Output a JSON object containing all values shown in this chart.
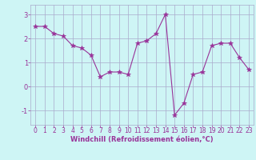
{
  "x": [
    0,
    1,
    2,
    3,
    4,
    5,
    6,
    7,
    8,
    9,
    10,
    11,
    12,
    13,
    14,
    15,
    16,
    17,
    18,
    19,
    20,
    21,
    22,
    23
  ],
  "y": [
    2.5,
    2.5,
    2.2,
    2.1,
    1.7,
    1.6,
    1.3,
    0.4,
    0.6,
    0.6,
    0.5,
    1.8,
    1.9,
    2.2,
    3.0,
    -1.2,
    -0.7,
    0.5,
    0.6,
    1.7,
    1.8,
    1.8,
    1.2,
    0.7
  ],
  "line_color": "#993399",
  "marker": "*",
  "marker_color": "#993399",
  "xlabel": "Windchill (Refroidissement éolien,°C)",
  "ylim": [
    -1.6,
    3.4
  ],
  "xlim": [
    -0.5,
    23.5
  ],
  "yticks": [
    -1,
    0,
    1,
    2,
    3
  ],
  "xticks": [
    0,
    1,
    2,
    3,
    4,
    5,
    6,
    7,
    8,
    9,
    10,
    11,
    12,
    13,
    14,
    15,
    16,
    17,
    18,
    19,
    20,
    21,
    22,
    23
  ],
  "bg_color": "#cef5f5",
  "grid_color": "#aaaacc",
  "label_color": "#993399",
  "tick_color": "#993399",
  "tick_fontsize": 5.5,
  "xlabel_fontsize": 6.0
}
